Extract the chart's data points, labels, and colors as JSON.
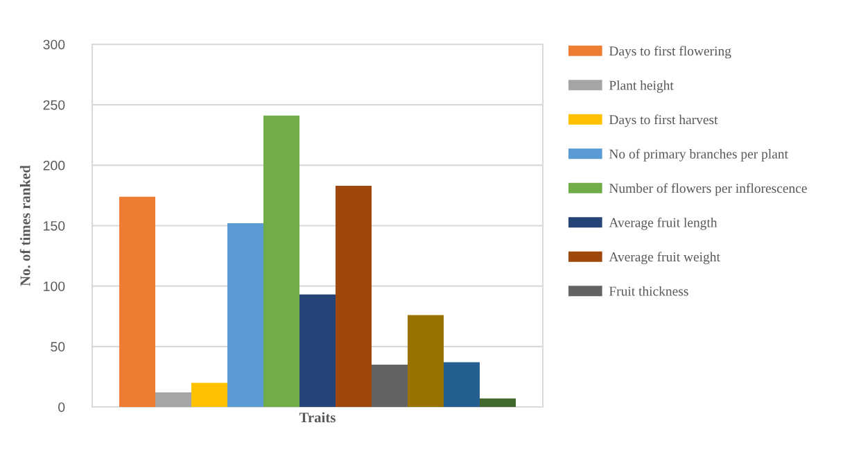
{
  "chart_data": {
    "type": "bar",
    "xlabel": "Traits",
    "ylabel": "No. of times ranked",
    "categories": [
      null
    ],
    "series": [
      {
        "name": "Days to first flowering",
        "color": "#ed7d31",
        "values": [
          174
        ]
      },
      {
        "name": "Plant height",
        "color": "#a5a5a5",
        "values": [
          12
        ]
      },
      {
        "name": "Days to first harvest",
        "color": "#ffc000",
        "values": [
          20
        ]
      },
      {
        "name": "No of primary branches per plant",
        "color": "#5b9bd5",
        "values": [
          152
        ]
      },
      {
        "name": "Number of flowers per inflorescence",
        "color": "#70ad47",
        "values": [
          241
        ]
      },
      {
        "name": "Average fruit length",
        "color": "#264478",
        "values": [
          93
        ]
      },
      {
        "name": "Average fruit weight",
        "color": "#9e480e",
        "values": [
          183
        ]
      },
      {
        "name": "Fruit thickness",
        "color": "#636363",
        "values": [
          35
        ]
      },
      {
        "color": "#997300",
        "values": [
          76
        ]
      },
      {
        "color": "#255e91",
        "values": [
          37
        ]
      },
      {
        "color": "#43682b",
        "values": [
          7
        ]
      }
    ],
    "ylim": [
      0,
      300
    ],
    "yticks": [
      0,
      50,
      100,
      150,
      200,
      250,
      300
    ],
    "grid": "y",
    "legend": "right"
  }
}
